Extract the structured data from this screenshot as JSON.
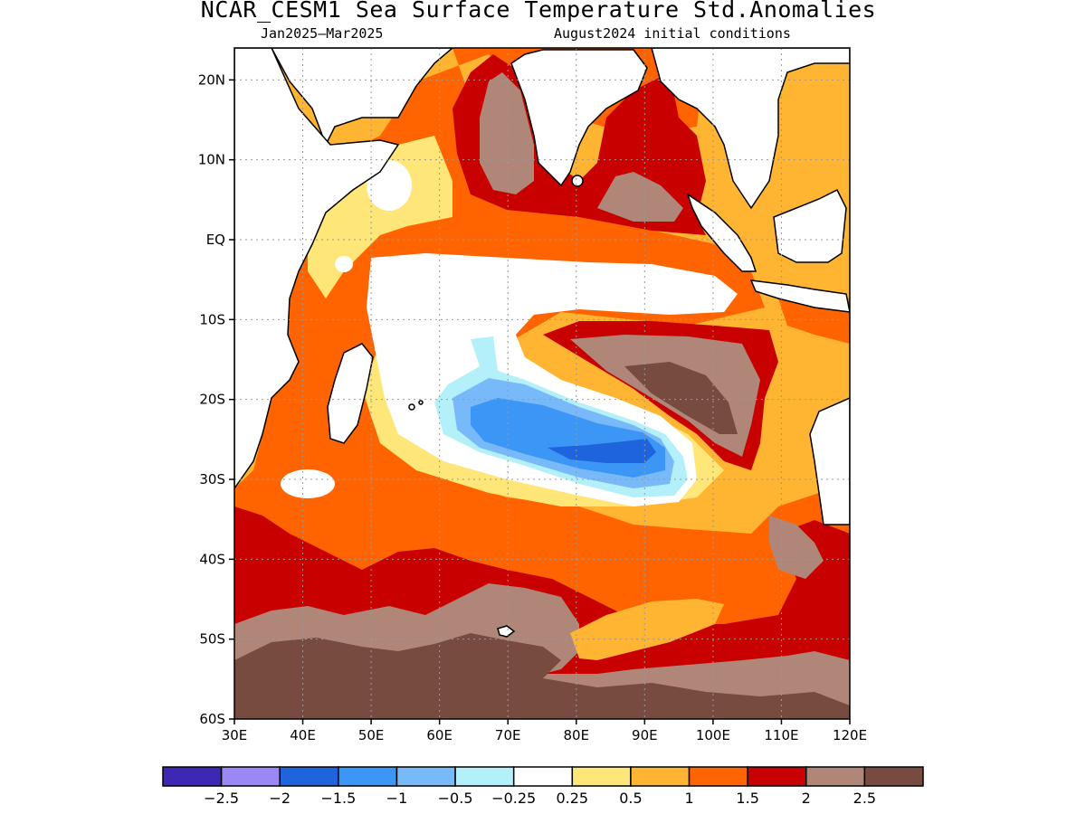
{
  "title": "NCAR_CESM1 Sea Surface Temperature Std.Anomalies",
  "subtitle_left": "Jan2025–Mar2025",
  "subtitle_right": "August2024 initial conditions",
  "map": {
    "lon_range": [
      30,
      120
    ],
    "lat_range": [
      -60,
      24
    ],
    "lat_ticks": [
      {
        "value": 20,
        "label": "20N"
      },
      {
        "value": 10,
        "label": "10N"
      },
      {
        "value": 0,
        "label": "EQ"
      },
      {
        "value": -10,
        "label": "10S"
      },
      {
        "value": -20,
        "label": "20S"
      },
      {
        "value": -30,
        "label": "30S"
      },
      {
        "value": -40,
        "label": "40S"
      },
      {
        "value": -50,
        "label": "50S"
      },
      {
        "value": -60,
        "label": "60S"
      }
    ],
    "lon_ticks": [
      {
        "value": 30,
        "label": "30E"
      },
      {
        "value": 40,
        "label": "40E"
      },
      {
        "value": 50,
        "label": "50E"
      },
      {
        "value": 60,
        "label": "60E"
      },
      {
        "value": 70,
        "label": "70E"
      },
      {
        "value": 80,
        "label": "80E"
      },
      {
        "value": 90,
        "label": "90E"
      },
      {
        "value": 100,
        "label": "100E"
      },
      {
        "value": 110,
        "label": "110E"
      },
      {
        "value": 120,
        "label": "120E"
      }
    ]
  },
  "colorbar": {
    "colors": [
      "#3c28b4",
      "#9b88f5",
      "#1e64dc",
      "#3c96f5",
      "#78b9fa",
      "#b4f0fa",
      "#ffffff",
      "#ffe678",
      "#ffb432",
      "#ff6400",
      "#c80000",
      "#af8677",
      "#784b41"
    ],
    "labels": [
      "−2.5",
      "−2",
      "−1.5",
      "−1",
      "−0.5",
      "−0.25",
      "0.25",
      "0.5",
      "1",
      "1.5",
      "2",
      "2.5"
    ]
  }
}
